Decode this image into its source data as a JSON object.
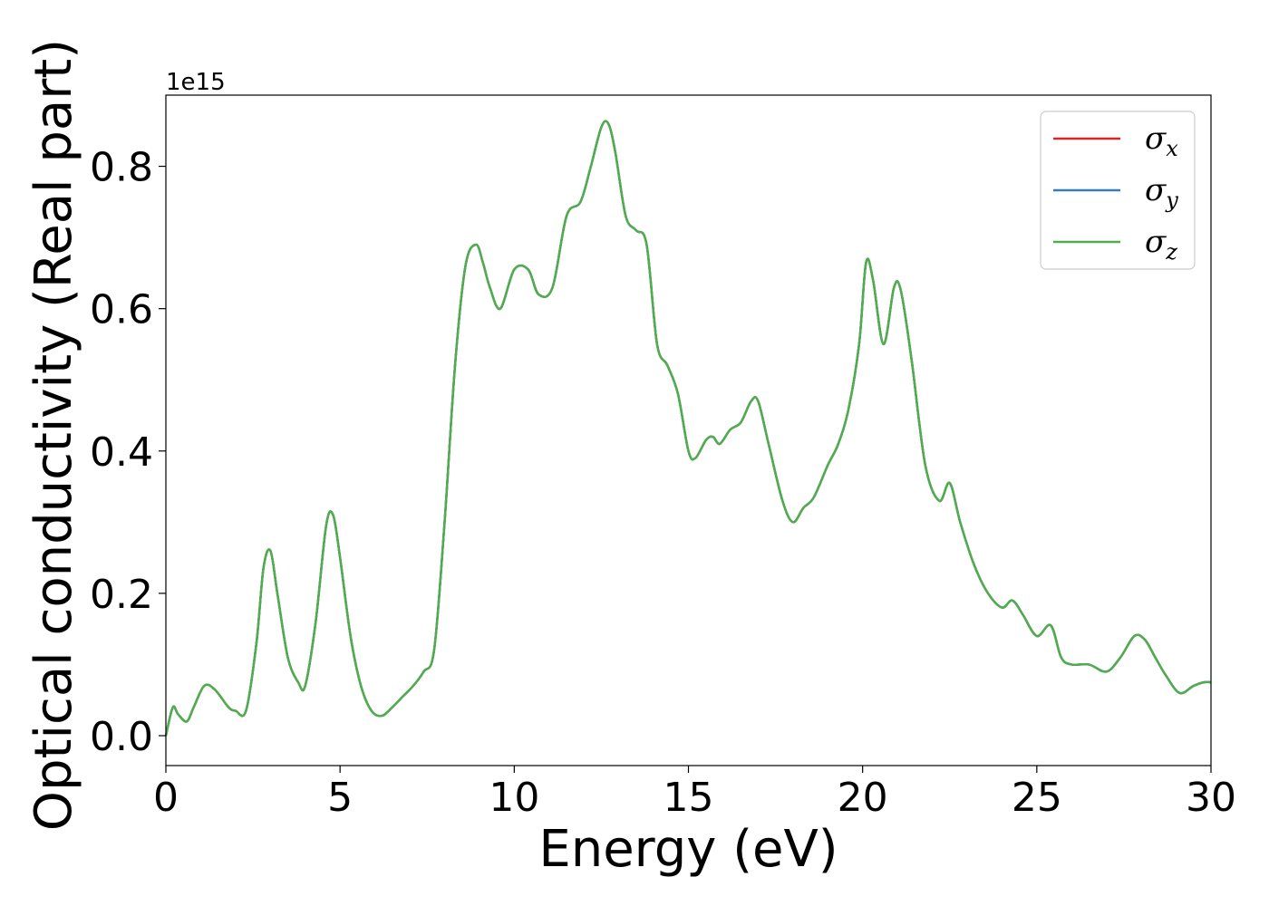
{
  "chart_data": {
    "type": "line",
    "xlabel": "Energy (eV)",
    "ylabel": "Optical conductivity (Real part)",
    "y_offset_label": "1e15",
    "xlim": [
      0,
      30
    ],
    "ylim": [
      -0.042,
      0.9
    ],
    "x_ticks": [
      0,
      5,
      10,
      15,
      20,
      25,
      30
    ],
    "x_tick_labels": [
      "0",
      "5",
      "10",
      "15",
      "20",
      "25",
      "30"
    ],
    "y_ticks": [
      0.0,
      0.2,
      0.4,
      0.6,
      0.8
    ],
    "y_tick_labels": [
      "0.0",
      "0.2",
      "0.4",
      "0.6",
      "0.8"
    ],
    "grid": false,
    "legend_position": "top-right",
    "x": [
      0,
      0.2,
      0.35,
      0.6,
      0.8,
      1.1,
      1.4,
      1.8,
      2.0,
      2.3,
      2.6,
      2.8,
      3.0,
      3.2,
      3.5,
      3.8,
      4.0,
      4.3,
      4.6,
      4.8,
      5.0,
      5.3,
      5.6,
      5.9,
      6.2,
      6.5,
      6.8,
      7.1,
      7.4,
      7.7,
      8.0,
      8.3,
      8.6,
      8.9,
      9.1,
      9.3,
      9.6,
      10.0,
      10.4,
      10.7,
      11.1,
      11.5,
      11.9,
      12.2,
      12.5,
      12.7,
      12.9,
      13.2,
      13.5,
      13.8,
      14.1,
      14.4,
      14.7,
      15.0,
      15.2,
      15.5,
      15.7,
      15.9,
      16.2,
      16.5,
      16.8,
      17.0,
      17.3,
      17.7,
      18.0,
      18.3,
      18.6,
      19.0,
      19.3,
      19.6,
      19.9,
      20.1,
      20.3,
      20.6,
      20.9,
      21.1,
      21.4,
      21.8,
      22.2,
      22.5,
      22.8,
      23.2,
      23.6,
      24.0,
      24.3,
      24.6,
      25.0,
      25.4,
      25.7,
      26.0,
      26.5,
      27.0,
      27.4,
      27.8,
      28.1,
      28.4,
      28.7,
      29.1,
      29.5,
      29.8,
      30.0
    ],
    "series": [
      {
        "name": "σx",
        "label_symbol": "σ",
        "label_sub": "x",
        "color": "#d62728",
        "values": [
          0.0,
          0.04,
          0.03,
          0.02,
          0.04,
          0.07,
          0.065,
          0.04,
          0.035,
          0.035,
          0.13,
          0.235,
          0.26,
          0.2,
          0.11,
          0.075,
          0.07,
          0.16,
          0.295,
          0.31,
          0.25,
          0.14,
          0.07,
          0.035,
          0.028,
          0.04,
          0.055,
          0.07,
          0.09,
          0.12,
          0.3,
          0.52,
          0.66,
          0.69,
          0.665,
          0.63,
          0.6,
          0.655,
          0.655,
          0.62,
          0.63,
          0.73,
          0.75,
          0.8,
          0.855,
          0.86,
          0.82,
          0.73,
          0.71,
          0.69,
          0.55,
          0.52,
          0.48,
          0.4,
          0.39,
          0.415,
          0.42,
          0.41,
          0.43,
          0.44,
          0.47,
          0.47,
          0.41,
          0.33,
          0.3,
          0.32,
          0.335,
          0.38,
          0.41,
          0.46,
          0.55,
          0.665,
          0.64,
          0.55,
          0.63,
          0.625,
          0.53,
          0.38,
          0.33,
          0.355,
          0.3,
          0.24,
          0.2,
          0.18,
          0.19,
          0.17,
          0.14,
          0.155,
          0.11,
          0.1,
          0.1,
          0.09,
          0.11,
          0.14,
          0.135,
          0.11,
          0.085,
          0.06,
          0.07,
          0.075,
          0.075
        ]
      },
      {
        "name": "σy",
        "label_symbol": "σ",
        "label_sub": "y",
        "color": "#377eb8",
        "values": [
          0.0,
          0.04,
          0.03,
          0.02,
          0.04,
          0.07,
          0.065,
          0.04,
          0.035,
          0.035,
          0.13,
          0.235,
          0.26,
          0.2,
          0.11,
          0.075,
          0.07,
          0.16,
          0.295,
          0.31,
          0.25,
          0.14,
          0.07,
          0.035,
          0.028,
          0.04,
          0.055,
          0.07,
          0.09,
          0.12,
          0.3,
          0.52,
          0.66,
          0.69,
          0.665,
          0.63,
          0.6,
          0.655,
          0.655,
          0.62,
          0.63,
          0.73,
          0.75,
          0.8,
          0.855,
          0.86,
          0.82,
          0.73,
          0.71,
          0.69,
          0.55,
          0.52,
          0.48,
          0.4,
          0.39,
          0.415,
          0.42,
          0.41,
          0.43,
          0.44,
          0.47,
          0.47,
          0.41,
          0.33,
          0.3,
          0.32,
          0.335,
          0.38,
          0.41,
          0.46,
          0.55,
          0.665,
          0.64,
          0.55,
          0.63,
          0.625,
          0.53,
          0.38,
          0.33,
          0.355,
          0.3,
          0.24,
          0.2,
          0.18,
          0.19,
          0.17,
          0.14,
          0.155,
          0.11,
          0.1,
          0.1,
          0.09,
          0.11,
          0.14,
          0.135,
          0.11,
          0.085,
          0.06,
          0.07,
          0.075,
          0.075
        ]
      },
      {
        "name": "σz",
        "label_symbol": "σ",
        "label_sub": "z",
        "color": "#4daf4a",
        "values": [
          0.0,
          0.04,
          0.03,
          0.02,
          0.04,
          0.07,
          0.065,
          0.04,
          0.035,
          0.035,
          0.13,
          0.235,
          0.26,
          0.2,
          0.11,
          0.075,
          0.07,
          0.16,
          0.295,
          0.31,
          0.25,
          0.14,
          0.07,
          0.035,
          0.028,
          0.04,
          0.055,
          0.07,
          0.09,
          0.12,
          0.3,
          0.52,
          0.66,
          0.69,
          0.665,
          0.63,
          0.6,
          0.655,
          0.655,
          0.62,
          0.63,
          0.73,
          0.75,
          0.8,
          0.855,
          0.86,
          0.82,
          0.73,
          0.71,
          0.69,
          0.55,
          0.52,
          0.48,
          0.4,
          0.39,
          0.415,
          0.42,
          0.41,
          0.43,
          0.44,
          0.47,
          0.47,
          0.41,
          0.33,
          0.3,
          0.32,
          0.335,
          0.38,
          0.41,
          0.46,
          0.55,
          0.665,
          0.64,
          0.55,
          0.63,
          0.625,
          0.53,
          0.38,
          0.33,
          0.355,
          0.3,
          0.24,
          0.2,
          0.18,
          0.19,
          0.17,
          0.14,
          0.155,
          0.11,
          0.1,
          0.1,
          0.09,
          0.11,
          0.14,
          0.135,
          0.11,
          0.085,
          0.06,
          0.07,
          0.075,
          0.075
        ]
      }
    ]
  }
}
